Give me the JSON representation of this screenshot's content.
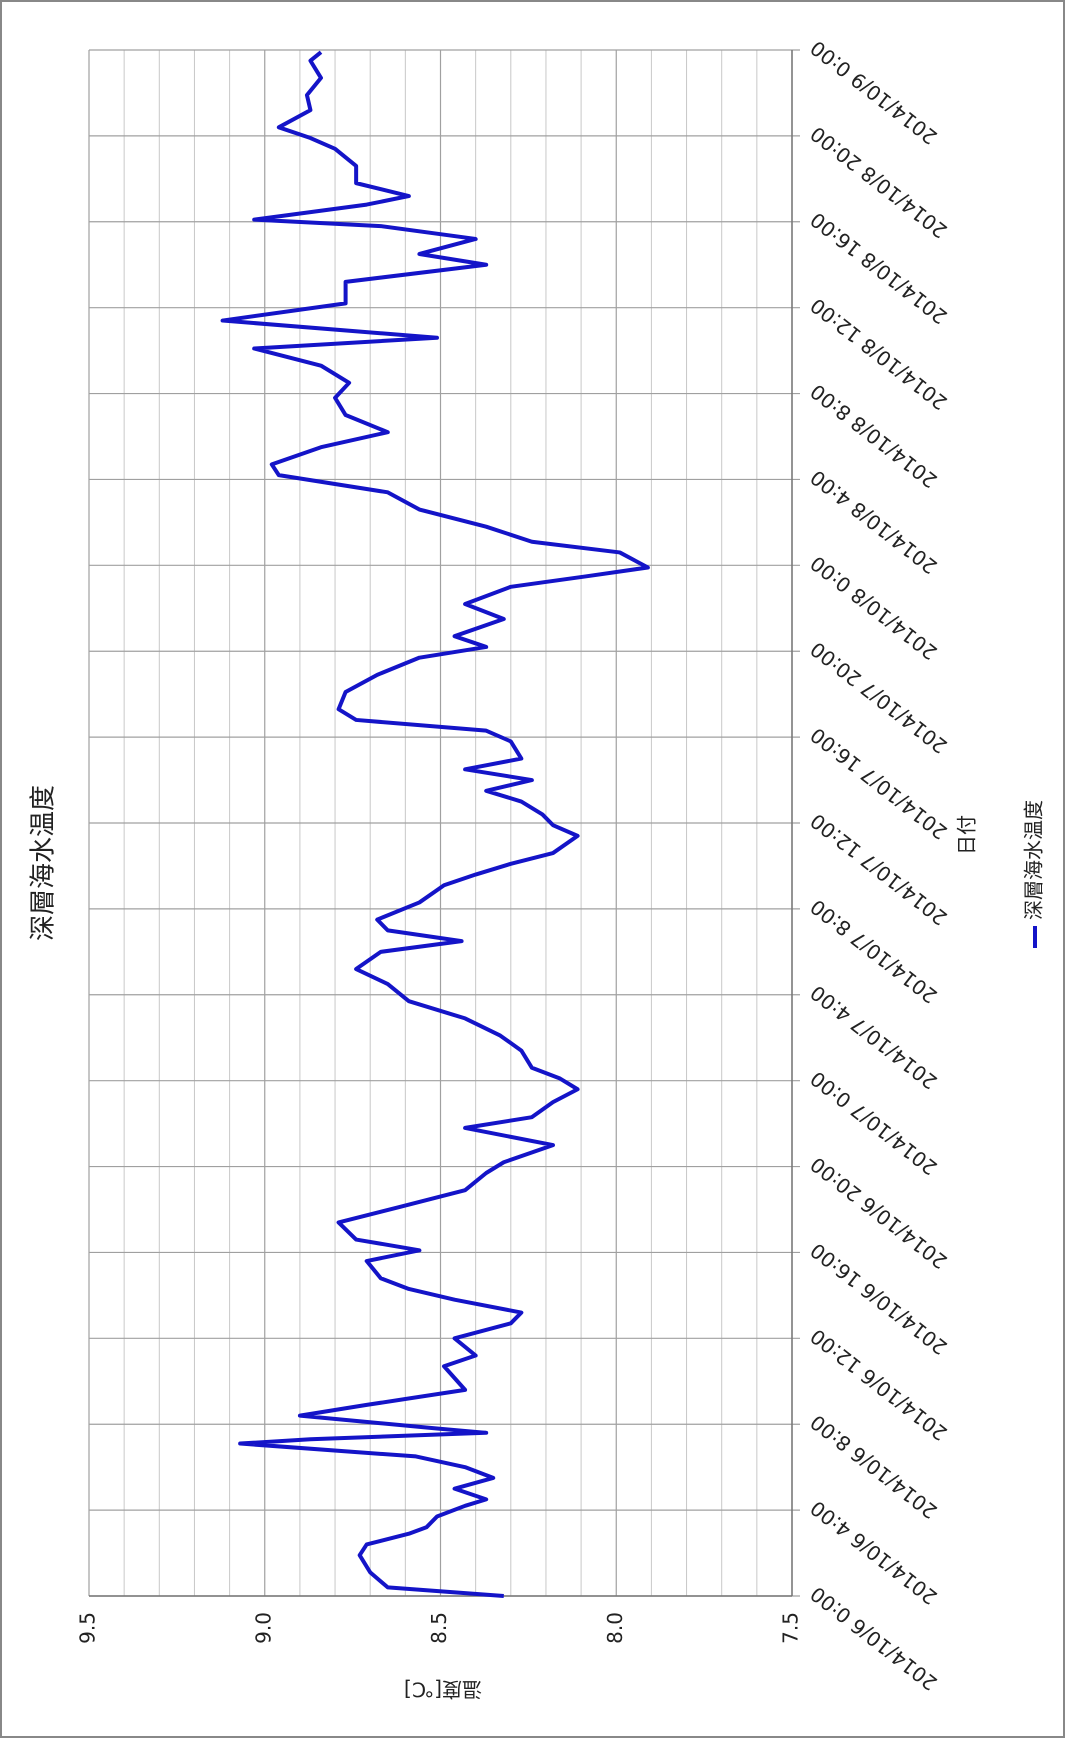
{
  "chart_data": {
    "type": "line",
    "title": "深層海水温度",
    "x_label": "日付",
    "y_label": "温度[℃]",
    "legend": "bottom",
    "x": [
      0,
      0.4,
      1.1,
      1.9,
      2.4,
      2.9,
      3.2,
      3.7,
      4.2,
      4.5,
      5.0,
      5.5,
      6.0,
      6.5,
      7.1,
      7.3,
      7.6,
      7.8,
      8.4,
      8.9,
      9.6,
      10.7,
      11.2,
      12.0,
      12.7,
      13.2,
      13.8,
      14.3,
      14.8,
      15.6,
      16.1,
      16.6,
      17.4,
      18.1,
      18.9,
      19.7,
      20.2,
      21.0,
      21.8,
      22.3,
      23.0,
      23.6,
      24.1,
      24.6,
      25.4,
      26.1,
      26.9,
      27.7,
      28.5,
      29.2,
      30.0,
      30.5,
      31.0,
      31.5,
      32.3,
      33.1,
      33.6,
      34.1,
      34.6,
      35.4,
      35.9,
      36.4,
      37.0,
      37.5,
      38.0,
      38.5,
      39.0,
      39.8,
      40.3,
      40.8,
      41.3,
      42.1,
      42.9,
      43.7,
      44.2,
      44.7,
      45.5,
      46.2,
      47.0,
      47.5,
      47.9,
      48.6,
      49.1,
      49.8,
      50.6,
      51.4,
      52.2,
      52.7,
      53.5,
      54.2,
      55.0,
      55.8,
      56.5,
      57.3,
      58.1,
      58.6,
      59.4,
      60.2,
      61.2,
      62.0,
      62.5,
      63.2,
      63.8,
      64.1,
      64.8,
      65.2,
      65.8,
      66.6,
      67.4,
      67.9,
      68.4,
      69.2,
      69.9,
      70.7,
      71.5,
      71.9
    ],
    "series": [
      {
        "name": "深層海水温度",
        "color": "#1414c8",
        "values": [
          8.32,
          8.65,
          8.7,
          8.73,
          8.71,
          8.59,
          8.54,
          8.51,
          8.43,
          8.37,
          8.46,
          8.35,
          8.43,
          8.57,
          9.07,
          8.87,
          8.37,
          8.51,
          8.9,
          8.71,
          8.43,
          8.49,
          8.4,
          8.46,
          8.3,
          8.27,
          8.46,
          8.59,
          8.67,
          8.71,
          8.56,
          8.74,
          8.79,
          8.62,
          8.43,
          8.37,
          8.32,
          8.18,
          8.43,
          8.24,
          8.18,
          8.11,
          8.16,
          8.24,
          8.27,
          8.33,
          8.43,
          8.59,
          8.65,
          8.74,
          8.67,
          8.44,
          8.65,
          8.68,
          8.56,
          8.49,
          8.4,
          8.3,
          8.18,
          8.11,
          8.18,
          8.21,
          8.27,
          8.37,
          8.24,
          8.43,
          8.27,
          8.3,
          8.37,
          8.74,
          8.79,
          8.77,
          8.68,
          8.56,
          8.37,
          8.46,
          8.32,
          8.43,
          8.3,
          8.08,
          7.91,
          7.99,
          8.24,
          8.37,
          8.56,
          8.65,
          8.96,
          8.98,
          8.84,
          8.65,
          8.77,
          8.8,
          8.76,
          8.84,
          9.03,
          8.51,
          9.12,
          8.77,
          8.77,
          8.37,
          8.56,
          8.4,
          8.67,
          9.03,
          8.71,
          8.59,
          8.74,
          8.74,
          8.8,
          8.87,
          8.96,
          8.87,
          8.88,
          8.84,
          8.87,
          8.84
        ]
      }
    ],
    "xlim": [
      0,
      72
    ],
    "xticks": [
      {
        "value": 0,
        "label": "2014/10/6 0:00"
      },
      {
        "value": 4,
        "label": "2014/10/6 4:00"
      },
      {
        "value": 8,
        "label": "2014/10/6 8:00"
      },
      {
        "value": 12,
        "label": "2014/10/6 12:00"
      },
      {
        "value": 16,
        "label": "2014/10/6 16:00"
      },
      {
        "value": 20,
        "label": "2014/10/6 20:00"
      },
      {
        "value": 24,
        "label": "2014/10/7 0:00"
      },
      {
        "value": 28,
        "label": "2014/10/7 4:00"
      },
      {
        "value": 32,
        "label": "2014/10/7 8:00"
      },
      {
        "value": 36,
        "label": "2014/10/7 12:00"
      },
      {
        "value": 40,
        "label": "2014/10/7 16:00"
      },
      {
        "value": 44,
        "label": "2014/10/7 20:00"
      },
      {
        "value": 48,
        "label": "2014/10/8 0:00"
      },
      {
        "value": 52,
        "label": "2014/10/8 4:00"
      },
      {
        "value": 56,
        "label": "2014/10/8 8:00"
      },
      {
        "value": 60,
        "label": "2014/10/8 12:00"
      },
      {
        "value": 64,
        "label": "2014/10/8 16:00"
      },
      {
        "value": 68,
        "label": "2014/10/8 20:00"
      },
      {
        "value": 72,
        "label": "2014/10/9 0:00"
      }
    ],
    "ylim": [
      7.5,
      9.5
    ],
    "yticks": [
      7.5,
      {
        "value": 8,
        "label": "8.0"
      },
      8.5,
      {
        "value": 9,
        "label": "9.0"
      },
      9.5
    ],
    "y_minor_grid": [
      7.6,
      7.7,
      7.8,
      7.9,
      8.1,
      8.2,
      8.3,
      8.4,
      8.6,
      8.7,
      8.8,
      8.9,
      9.1,
      9.2,
      9.3,
      9.4
    ],
    "grid": true,
    "rotation": -90
  }
}
